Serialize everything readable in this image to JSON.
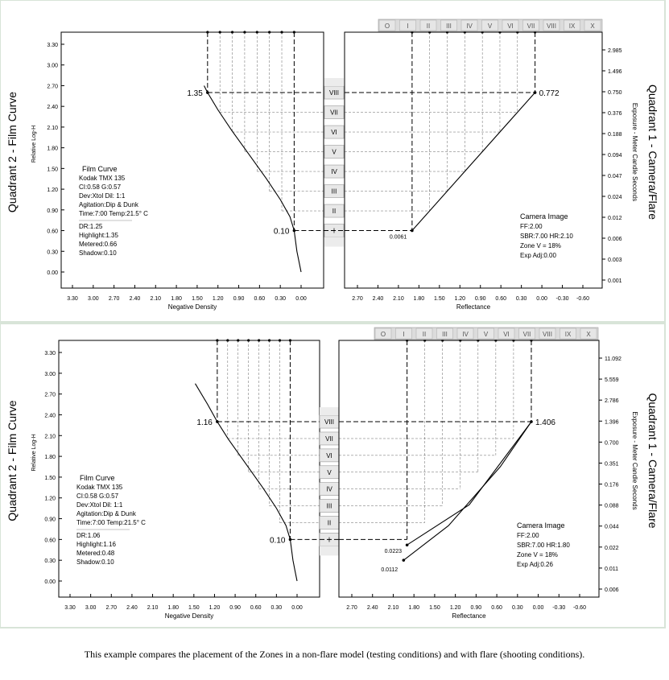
{
  "caption": "This example compares the placement of the Zones in a non-flare model (testing conditions) and with flare (shooting conditions).",
  "zones": [
    "O",
    "I",
    "II",
    "III",
    "IV",
    "V",
    "VI",
    "VII",
    "VIII",
    "IX",
    "X"
  ],
  "chart_data": [
    {
      "type": "line",
      "left": {
        "title": "Quadrant 2 - Film Curve",
        "xlabel": "Negative Density",
        "ylabel": "Relative Log-H",
        "xticks": [
          "3.30",
          "3.00",
          "2.70",
          "2.40",
          "2.10",
          "1.80",
          "1.50",
          "1.20",
          "0.90",
          "0.60",
          "0.30",
          "0.00"
        ],
        "yticks": [
          "0.00",
          "0.30",
          "0.60",
          "0.90",
          "1.20",
          "1.50",
          "1.80",
          "2.10",
          "2.40",
          "2.70",
          "3.00",
          "3.30"
        ],
        "curve": [
          [
            0.0,
            0.0
          ],
          [
            0.03,
            0.15
          ],
          [
            0.06,
            0.3
          ],
          [
            0.1,
            0.6
          ],
          [
            0.16,
            0.8
          ],
          [
            0.3,
            1.05
          ],
          [
            0.5,
            1.35
          ],
          [
            0.75,
            1.7
          ],
          [
            1.0,
            2.05
          ],
          [
            1.2,
            2.35
          ],
          [
            1.35,
            2.6
          ],
          [
            1.4,
            2.7
          ]
        ],
        "highlight_label": "1.35",
        "shadow_label": "0.10",
        "info": [
          "Film Curve",
          "Kodak TMX 135",
          "CI:0.58  G:0.57",
          "Dev:Xtol  Dil: 1:1",
          "Agitation:Dip & Dunk",
          "Time:7:00  Temp:21.5° C",
          "DR:1.25",
          "Highlight:1.35",
          "Metered:0.66",
          "Shadow:0.10"
        ]
      },
      "right": {
        "title": "Quadrant 1 - Camera/Flare",
        "xlabel": "Reflectance",
        "ylabel": "Exposure - Meter Candle Seconds",
        "xticks": [
          "2.70",
          "2.40",
          "2.10",
          "1.80",
          "1.50",
          "1.20",
          "0.90",
          "0.60",
          "0.30",
          "0.00",
          "-0.30",
          "-0.60"
        ],
        "yticks": [
          "0.001",
          "0.003",
          "0.006",
          "0.012",
          "0.024",
          "0.047",
          "0.094",
          "0.188",
          "0.376",
          "0.750",
          "1.496",
          "2.985"
        ],
        "curves": [
          [
            [
              1.9,
              0.6
            ],
            [
              0.1,
              2.6
            ]
          ]
        ],
        "highlight_label": "0.772",
        "shadow_labels": [
          "0.0061"
        ],
        "info": [
          "Camera Image",
          "FF:2.00",
          "SBR:7.00  HR:2.10",
          "Zone V = 18%",
          "Exp Adj:0.00"
        ]
      }
    },
    {
      "type": "line",
      "left": {
        "title": "Quadrant 2 - Film Curve",
        "xlabel": "Negative Density",
        "ylabel": "Relative Log-H",
        "xticks": [
          "3.30",
          "3.00",
          "2.70",
          "2.40",
          "2.10",
          "1.80",
          "1.50",
          "1.20",
          "0.90",
          "0.60",
          "0.30",
          "0.00"
        ],
        "yticks": [
          "0.00",
          "0.30",
          "0.60",
          "0.90",
          "1.20",
          "1.50",
          "1.80",
          "2.10",
          "2.40",
          "2.70",
          "3.00",
          "3.30"
        ],
        "curve": [
          [
            0.0,
            0.0
          ],
          [
            0.03,
            0.15
          ],
          [
            0.06,
            0.3
          ],
          [
            0.1,
            0.6
          ],
          [
            0.16,
            0.8
          ],
          [
            0.3,
            1.05
          ],
          [
            0.5,
            1.35
          ],
          [
            0.75,
            1.7
          ],
          [
            1.0,
            2.05
          ],
          [
            1.16,
            2.3
          ],
          [
            1.3,
            2.55
          ],
          [
            1.48,
            2.85
          ]
        ],
        "highlight_label": "1.16",
        "shadow_label": "0.10",
        "info": [
          "Film Curve",
          "Kodak TMX 135",
          "CI:0.58  G:0.57",
          "Dev:Xtol  Dil: 1:1",
          "Agitation:Dip & Dunk",
          "Time:7:00  Temp:21.5° C",
          "DR:1.06",
          "Highlight:1.16",
          "Metered:0.48",
          "Shadow:0.10"
        ]
      },
      "right": {
        "title": "Quadrant 1 - Camera/Flare",
        "xlabel": "Reflectance",
        "ylabel": "Exposure - Meter Candle Seconds",
        "xticks": [
          "2.70",
          "2.40",
          "2.10",
          "1.80",
          "1.50",
          "1.20",
          "0.90",
          "0.60",
          "0.30",
          "0.00",
          "-0.30",
          "-0.60"
        ],
        "yticks": [
          "0.006",
          "0.011",
          "0.022",
          "0.044",
          "0.088",
          "0.176",
          "0.351",
          "0.700",
          "1.396",
          "2.786",
          "5.559",
          "11.092"
        ],
        "curves": [
          [
            [
              1.9,
              0.52
            ],
            [
              1.0,
              1.1
            ],
            [
              0.1,
              2.3
            ]
          ],
          [
            [
              1.95,
              0.3
            ],
            [
              1.3,
              0.8
            ],
            [
              0.55,
              1.65
            ],
            [
              0.1,
              2.3
            ]
          ]
        ],
        "highlight_label": "1.406",
        "shadow_labels": [
          "0.0223",
          "0.0112"
        ],
        "info": [
          "Camera Image",
          "FF:2.00",
          "SBR:7.00  HR:1.80",
          "Zone V = 18%",
          "Exp Adj:0.26"
        ]
      }
    }
  ]
}
